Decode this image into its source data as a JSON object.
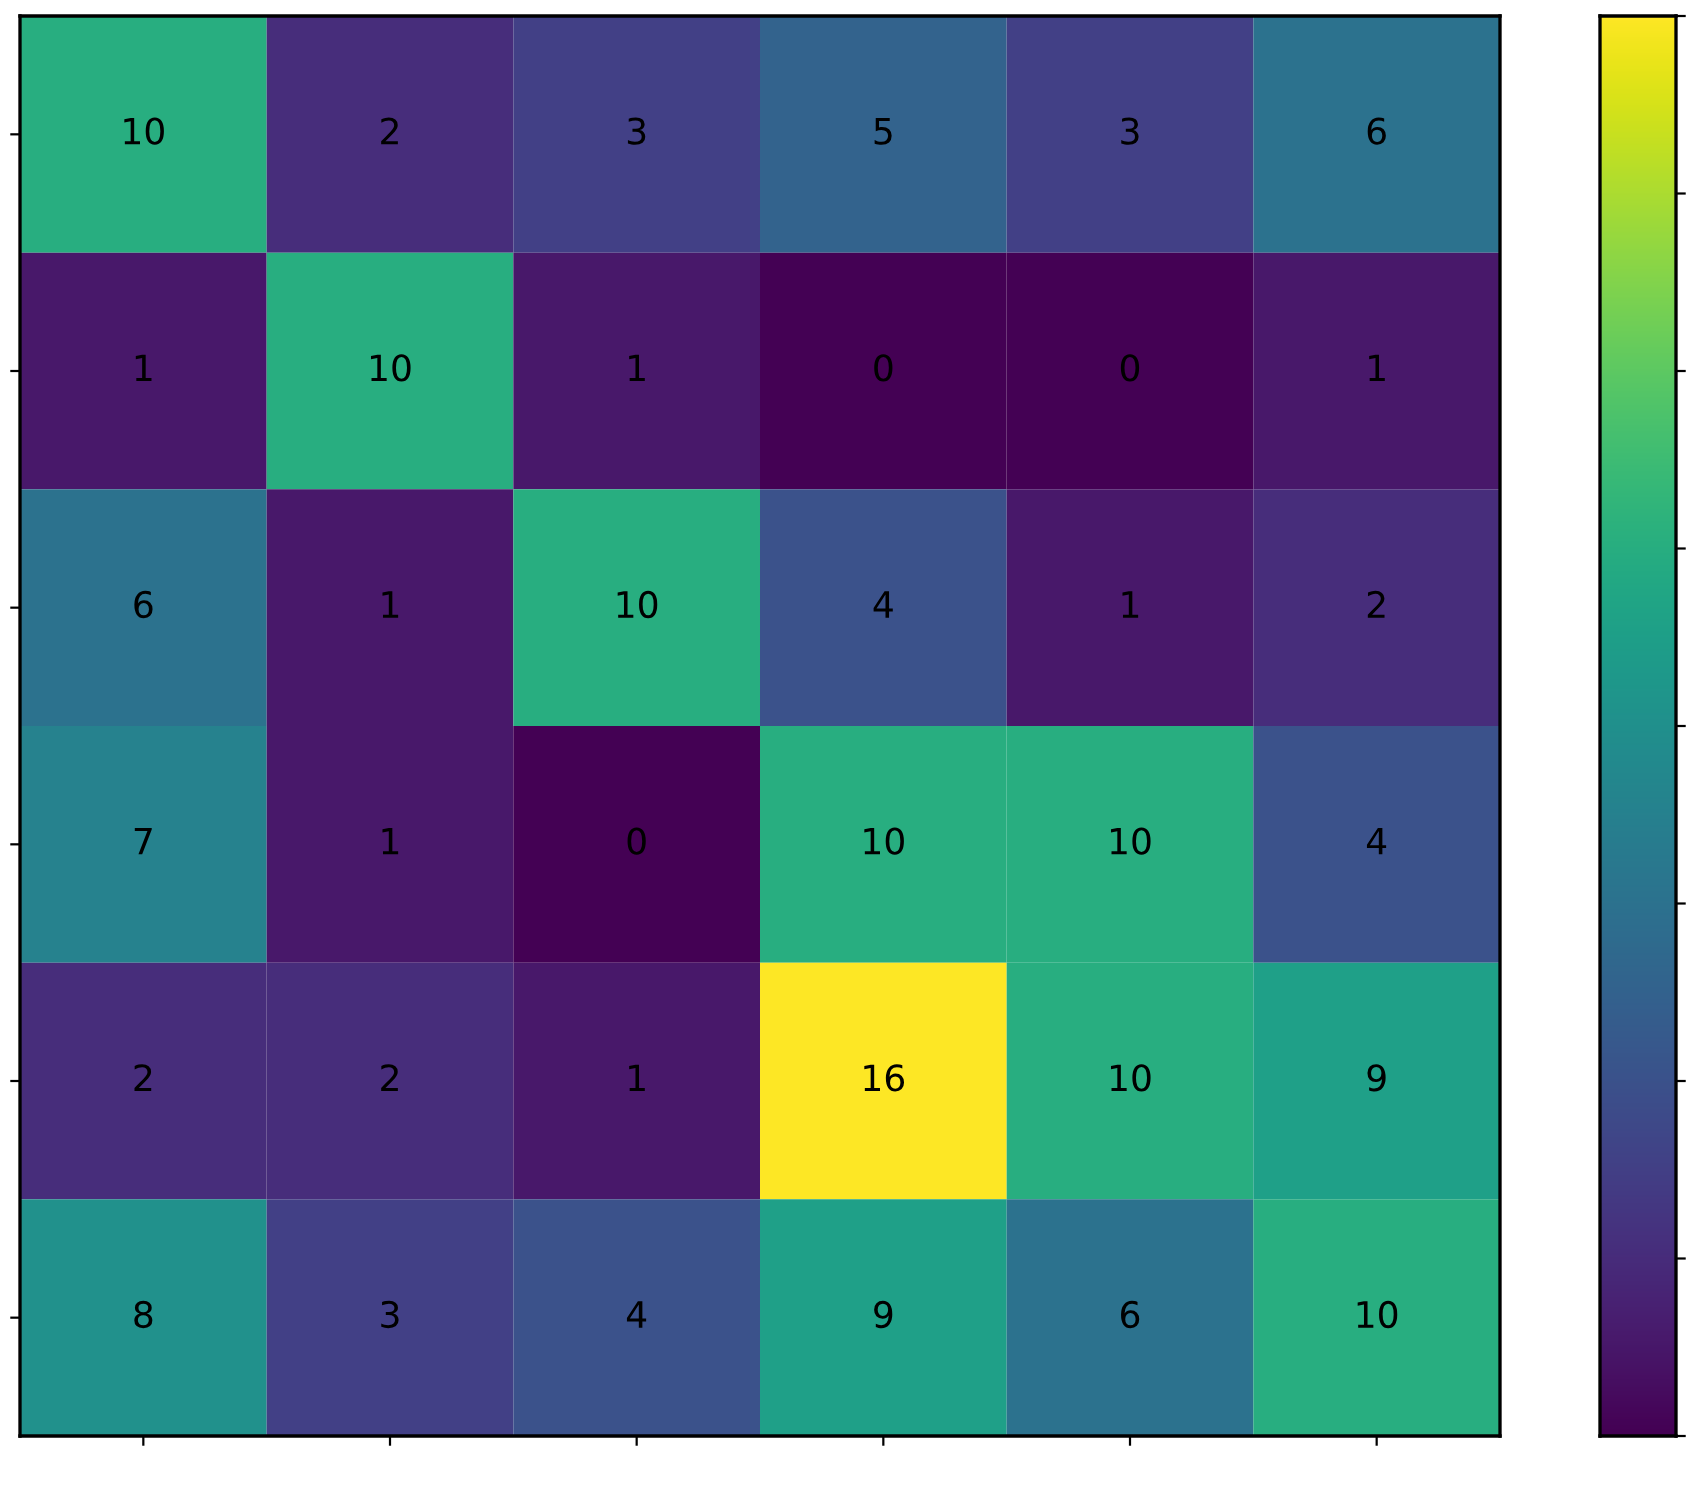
{
  "chart_data": {
    "type": "heatmap",
    "categories": [
      null,
      null,
      null,
      null,
      null,
      null
    ],
    "y_categories": [
      null,
      null,
      null,
      null,
      null,
      null
    ],
    "cells": [
      [
        10,
        2,
        3,
        5,
        3,
        6
      ],
      [
        1,
        10,
        1,
        0,
        0,
        1
      ],
      [
        6,
        1,
        10,
        4,
        1,
        2
      ],
      [
        7,
        1,
        0,
        10,
        10,
        4
      ],
      [
        2,
        2,
        1,
        16,
        10,
        9
      ],
      [
        8,
        3,
        4,
        9,
        6,
        10
      ]
    ],
    "data_labels": true
  }
}
